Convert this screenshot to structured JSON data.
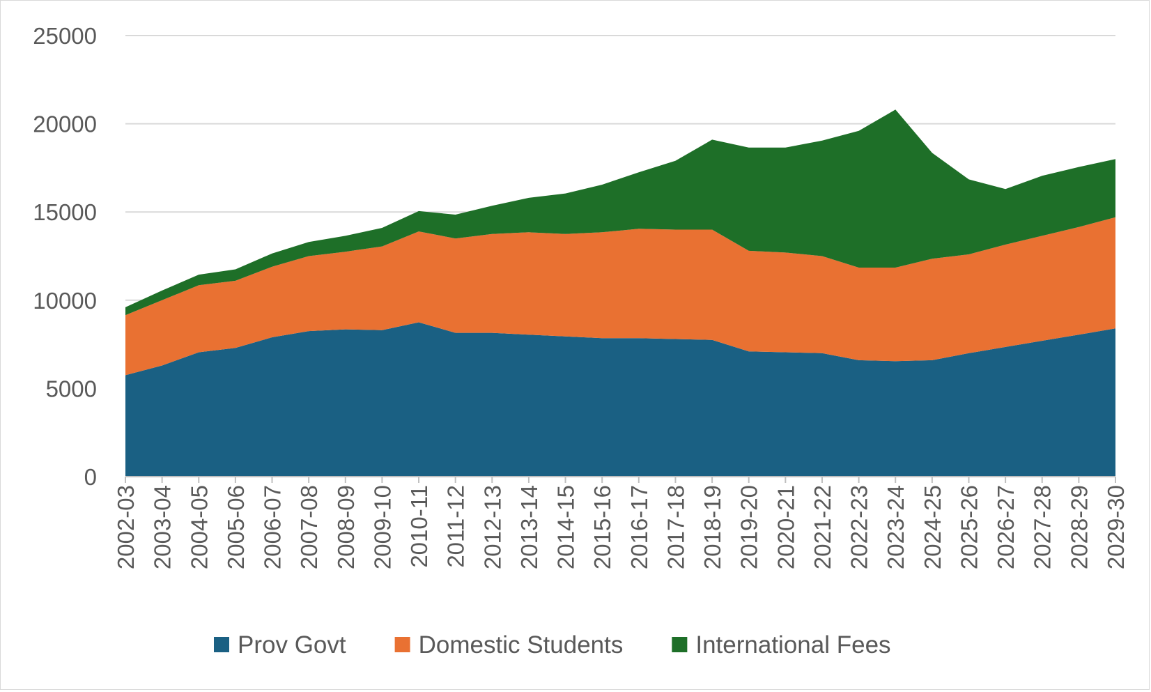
{
  "chart_data": {
    "type": "area",
    "stacked": true,
    "title": "",
    "xlabel": "",
    "ylabel": "",
    "ylim": [
      0,
      25000
    ],
    "yticks": [
      0,
      5000,
      10000,
      15000,
      20000,
      25000
    ],
    "grid": true,
    "legend_position": "bottom",
    "categories": [
      "2002-03",
      "2003-04",
      "2004-05",
      "2005-06",
      "2006-07",
      "2007-08",
      "2008-09",
      "2009-10",
      "2010-11",
      "2011-12",
      "2012-13",
      "2013-14",
      "2014-15",
      "2015-16",
      "2016-17",
      "2017-18",
      "2018-19",
      "2019-20",
      "2020-21",
      "2021-22",
      "2022-23",
      "2023-24",
      "2024-25",
      "2025-26",
      "2026-27",
      "2027-28",
      "2028-29",
      "2029-30"
    ],
    "series": [
      {
        "name": "Prov Govt",
        "color": "#1a6083",
        "values": [
          5750,
          6300,
          7050,
          7300,
          7900,
          8250,
          8350,
          8300,
          8750,
          8150,
          8150,
          8050,
          7950,
          7850,
          7850,
          7800,
          7750,
          7100,
          7050,
          7000,
          6600,
          6550,
          6600,
          7000,
          7350,
          7700,
          8050,
          8400
        ]
      },
      {
        "name": "Domestic Students",
        "color": "#e97132",
        "values": [
          3400,
          3700,
          3800,
          3800,
          4000,
          4250,
          4400,
          4750,
          5150,
          5350,
          5600,
          5800,
          5800,
          6000,
          6200,
          6200,
          6250,
          5700,
          5650,
          5500,
          5250,
          5300,
          5750,
          5600,
          5800,
          5950,
          6100,
          6300
        ]
      },
      {
        "name": "International Fees",
        "color": "#1e6f28",
        "values": [
          450,
          550,
          600,
          650,
          750,
          800,
          900,
          1050,
          1150,
          1350,
          1600,
          1950,
          2300,
          2700,
          3200,
          3900,
          5100,
          5850,
          5950,
          6550,
          7750,
          8950,
          6000,
          4250,
          3150,
          3400,
          3400,
          3300
        ]
      }
    ]
  }
}
